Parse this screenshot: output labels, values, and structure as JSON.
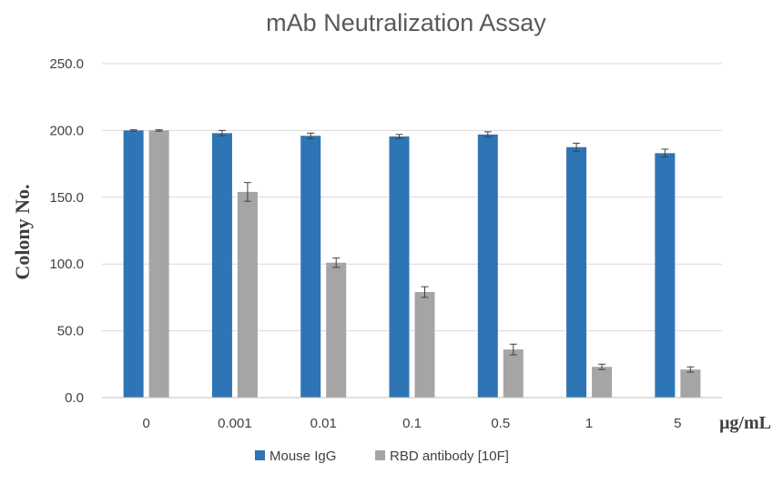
{
  "chart_data": {
    "type": "bar",
    "title": "mAb Neutralization Assay",
    "xlabel": "μg/mL",
    "ylabel": "Colony No.",
    "ylim": [
      0,
      250
    ],
    "yticks": [
      "0.0",
      "50.0",
      "100.0",
      "150.0",
      "200.0",
      "250.0"
    ],
    "categories": [
      "0",
      "0.001",
      "0.01",
      "0.1",
      "0.5",
      "1",
      "5"
    ],
    "series": [
      {
        "name": "Mouse IgG",
        "color": "#2e75b6",
        "values": [
          200,
          198,
          196,
          195.5,
          197,
          187.5,
          183
        ],
        "errors": [
          0.5,
          2,
          2,
          1.5,
          2,
          3,
          3
        ]
      },
      {
        "name": "RBD antibody [10F]",
        "color": "#a5a5a5",
        "values": [
          200,
          154,
          101,
          79,
          36,
          23,
          21
        ],
        "errors": [
          0.5,
          7,
          3.5,
          4,
          4,
          2,
          2
        ]
      }
    ],
    "grid": true,
    "legend_position": "bottom"
  }
}
